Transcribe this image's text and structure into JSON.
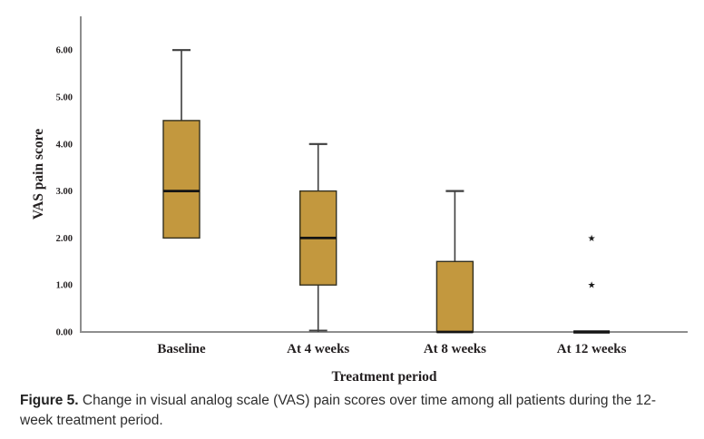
{
  "figure": {
    "caption_label": "Figure 5.",
    "caption_text": " Change in visual analog scale (VAS) pain scores over time among all patients during the 12-week treatment period."
  },
  "chart_data": {
    "type": "box",
    "title": "",
    "xlabel": "Treatment period",
    "ylabel": "VAS pain score",
    "ylim": [
      0,
      6.5
    ],
    "yticks": [
      0,
      1,
      2,
      3,
      4,
      5,
      6
    ],
    "ytick_labels": [
      "0.00",
      "1.00",
      "2.00",
      "3.00",
      "4.00",
      "5.00",
      "6.00"
    ],
    "categories": [
      "Baseline",
      "At 4 weeks",
      "At 8 weeks",
      "At 12 weeks"
    ],
    "boxes": [
      {
        "category": "Baseline",
        "whisker_low": 2.0,
        "q1": 2.0,
        "median": 3.0,
        "q3": 4.5,
        "whisker_high": 6.0,
        "outliers": []
      },
      {
        "category": "At 4 weeks",
        "whisker_low": 0.0,
        "q1": 1.0,
        "median": 2.0,
        "q3": 3.0,
        "whisker_high": 4.0,
        "outliers": []
      },
      {
        "category": "At 8 weeks",
        "whisker_low": 0.0,
        "q1": 0.0,
        "median": 0.0,
        "q3": 1.5,
        "whisker_high": 3.0,
        "outliers": []
      },
      {
        "category": "At 12 weeks",
        "whisker_low": 0.0,
        "q1": 0.0,
        "median": 0.0,
        "q3": 0.0,
        "whisker_high": 0.0,
        "outliers": [
          2.0,
          1.0
        ]
      }
    ],
    "outlier_marker": "★",
    "grid": false,
    "legend": "none",
    "colors": {
      "box_fill": "#C3983E",
      "box_border": "#33301F",
      "median": "#141414",
      "whisker": "#3E3E3E",
      "axis": "#8E8E8E",
      "label_text": "#231F20",
      "outlier": "#1A1A1A"
    }
  }
}
